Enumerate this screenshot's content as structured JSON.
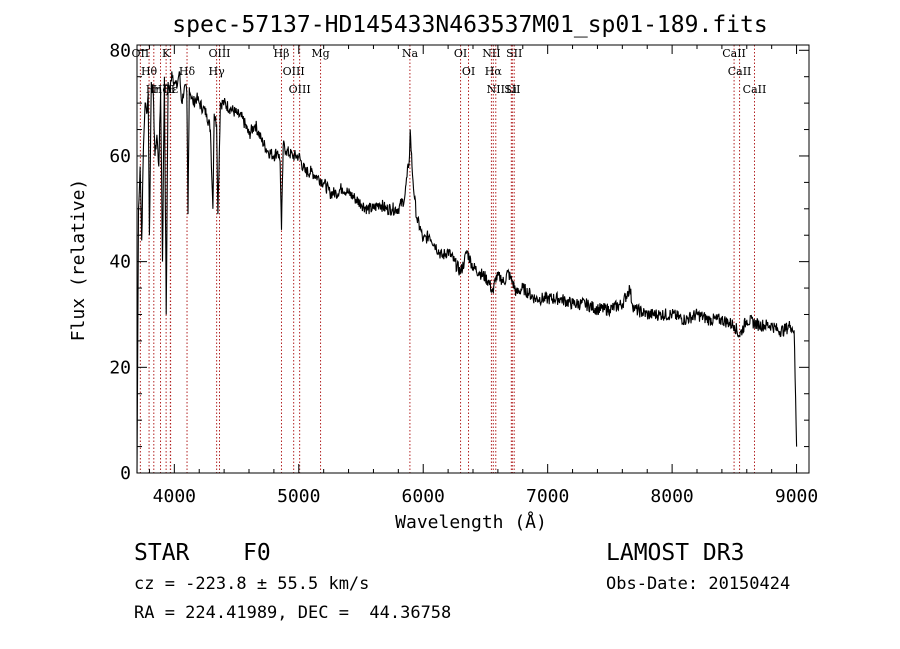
{
  "chart_data": {
    "type": "line",
    "title": "spec-57137-HD145433N463537M01_sp01-189.fits",
    "xlabel": "Wavelength (Å)",
    "ylabel": "Flux (relative)",
    "xlim": [
      3700,
      9100
    ],
    "ylim": [
      0,
      81
    ],
    "xticks": [
      4000,
      5000,
      6000,
      7000,
      8000,
      9000
    ],
    "yticks": [
      0,
      20,
      40,
      60,
      80
    ],
    "series": [
      {
        "name": "spectrum",
        "color": "#000000",
        "x": [
          3700,
          3712,
          3725,
          3738,
          3752,
          3765,
          3778,
          3790,
          3800,
          3815,
          3830,
          3845,
          3860,
          3875,
          3890,
          3905,
          3920,
          3935,
          3950,
          3965,
          3980,
          4000,
          4020,
          4040,
          4060,
          4080,
          4100,
          4110,
          4120,
          4150,
          4180,
          4200,
          4230,
          4260,
          4290,
          4310,
          4320,
          4340,
          4350,
          4370,
          4400,
          4450,
          4500,
          4550,
          4600,
          4650,
          4700,
          4750,
          4800,
          4830,
          4850,
          4861,
          4875,
          4900,
          4950,
          5000,
          5050,
          5100,
          5150,
          5200,
          5250,
          5300,
          5350,
          5400,
          5450,
          5500,
          5550,
          5600,
          5650,
          5700,
          5750,
          5800,
          5850,
          5870,
          5890,
          5895,
          5910,
          5930,
          5950,
          5980,
          6000,
          6050,
          6100,
          6150,
          6200,
          6250,
          6300,
          6330,
          6350,
          6400,
          6450,
          6500,
          6530,
          6563,
          6580,
          6620,
          6650,
          6680,
          6700,
          6720,
          6750,
          6800,
          6850,
          6900,
          7000,
          7100,
          7200,
          7300,
          7400,
          7500,
          7600,
          7640,
          7660,
          7680,
          7700,
          7800,
          7900,
          8000,
          8100,
          8200,
          8300,
          8400,
          8500,
          8540,
          8600,
          8700,
          8800,
          8850,
          8900,
          8950,
          8980,
          9000
        ],
        "y": [
          0,
          50,
          58,
          44,
          62,
          70,
          68,
          72,
          45,
          74,
          72,
          60,
          64,
          58,
          72,
          40,
          75,
          30,
          74,
          72,
          76,
          74,
          73,
          76,
          70,
          73,
          72,
          49,
          73,
          70,
          71,
          70,
          69,
          68,
          65,
          50,
          68,
          66,
          49,
          70,
          70,
          69,
          68,
          67,
          64,
          66,
          63,
          61,
          60,
          61,
          59,
          46,
          62,
          61,
          60,
          60,
          57,
          57,
          56,
          55,
          53,
          53,
          54,
          53,
          52,
          51,
          50,
          50,
          51,
          50,
          50,
          50,
          52,
          56,
          60,
          65,
          58,
          52,
          48,
          46,
          44,
          45,
          43,
          41,
          42,
          40,
          38,
          40,
          42,
          39,
          38,
          37,
          36,
          34,
          37,
          37,
          36,
          38,
          37,
          36,
          34,
          35,
          34,
          33,
          33,
          33,
          32,
          32,
          31,
          31,
          32,
          34,
          35,
          32,
          31,
          30,
          30,
          30,
          29,
          30,
          29,
          29,
          28,
          26,
          29,
          28,
          28,
          27,
          27,
          28,
          27,
          5
        ]
      }
    ],
    "lines": [
      {
        "name": "OII",
        "wave": 3727,
        "label": "OII"
      },
      {
        "name": "Hθ",
        "wave": 3797,
        "label": "Hθ"
      },
      {
        "name": "Hη",
        "wave": 3835,
        "label": "Hη"
      },
      {
        "name": "Hζ",
        "wave": 3889,
        "label": "Hζ"
      },
      {
        "name": "K",
        "wave": 3934,
        "label": "K"
      },
      {
        "name": "H",
        "wave": 3968,
        "label": "H"
      },
      {
        "name": "Hε",
        "wave": 3970,
        "label": "Hε"
      },
      {
        "name": "Hδ",
        "wave": 4102,
        "label": "Hδ"
      },
      {
        "name": "OIII-4363",
        "wave": 4363,
        "label": "OIII"
      },
      {
        "name": "Hγ",
        "wave": 4340,
        "label": "Hγ"
      },
      {
        "name": "Hβ",
        "wave": 4861,
        "label": "Hβ"
      },
      {
        "name": "OIII-4959",
        "wave": 4959,
        "label": "OIII"
      },
      {
        "name": "OIII-5007",
        "wave": 5007,
        "label": "OIII"
      },
      {
        "name": "Mg",
        "wave": 5175,
        "label": "Mg"
      },
      {
        "name": "Na",
        "wave": 5893,
        "label": "Na"
      },
      {
        "name": "OI-6300",
        "wave": 6300,
        "label": "OI"
      },
      {
        "name": "OI-6364",
        "wave": 6364,
        "label": "OI"
      },
      {
        "name": "NII-6548",
        "wave": 6548,
        "label": "NII"
      },
      {
        "name": "Hα",
        "wave": 6563,
        "label": "Hα"
      },
      {
        "name": "NII-6583",
        "wave": 6583,
        "label": "NII"
      },
      {
        "name": "Li",
        "wave": 6708,
        "label": "Li"
      },
      {
        "name": "SII-6716",
        "wave": 6716,
        "label": "SII"
      },
      {
        "name": "SII-6731",
        "wave": 6731,
        "label": "SII"
      },
      {
        "name": "CaII-8498",
        "wave": 8498,
        "label": "CaII"
      },
      {
        "name": "CaII-8542",
        "wave": 8542,
        "label": "CaII"
      },
      {
        "name": "CaII-8662",
        "wave": 8662,
        "label": "CaII"
      }
    ]
  },
  "info": {
    "class": "STAR",
    "subclass": "F0",
    "survey": "LAMOST DR3",
    "cz": "cz = -223.8 ± 55.5 km/s",
    "obs_date": "Obs-Date: 20150424",
    "coords": "RA = 224.41989, DEC =  44.36758"
  }
}
